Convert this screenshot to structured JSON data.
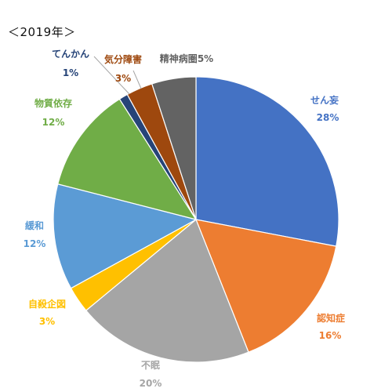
{
  "title": "＜2019年＞",
  "chart_data": {
    "type": "pie",
    "title": "＜2019年＞",
    "start_angle_deg": 0,
    "direction": "clockwise",
    "slices": [
      {
        "name": "せん妄",
        "pct_label": "28%",
        "value": 28,
        "color": "#4472C4"
      },
      {
        "name": "認知症",
        "pct_label": "16%",
        "value": 16,
        "color": "#ED7D31"
      },
      {
        "name": "不眠",
        "pct_label": "20%",
        "value": 20,
        "color": "#A5A5A5"
      },
      {
        "name": "自殺企図",
        "pct_label": "3%",
        "value": 3,
        "color": "#FFC000"
      },
      {
        "name": "緩和",
        "pct_label": "12%",
        "value": 12,
        "color": "#5B9BD5"
      },
      {
        "name": "物質依存",
        "pct_label": "12%",
        "value": 12,
        "color": "#70AD47"
      },
      {
        "name": "てんかん",
        "pct_label": "1%",
        "value": 1,
        "color": "#264478"
      },
      {
        "name": "気分障害",
        "pct_label": "3%",
        "value": 3,
        "color": "#9E480E"
      },
      {
        "name": "精神病圏",
        "pct_label": "5%",
        "value": 5,
        "color": "#636363"
      }
    ]
  }
}
